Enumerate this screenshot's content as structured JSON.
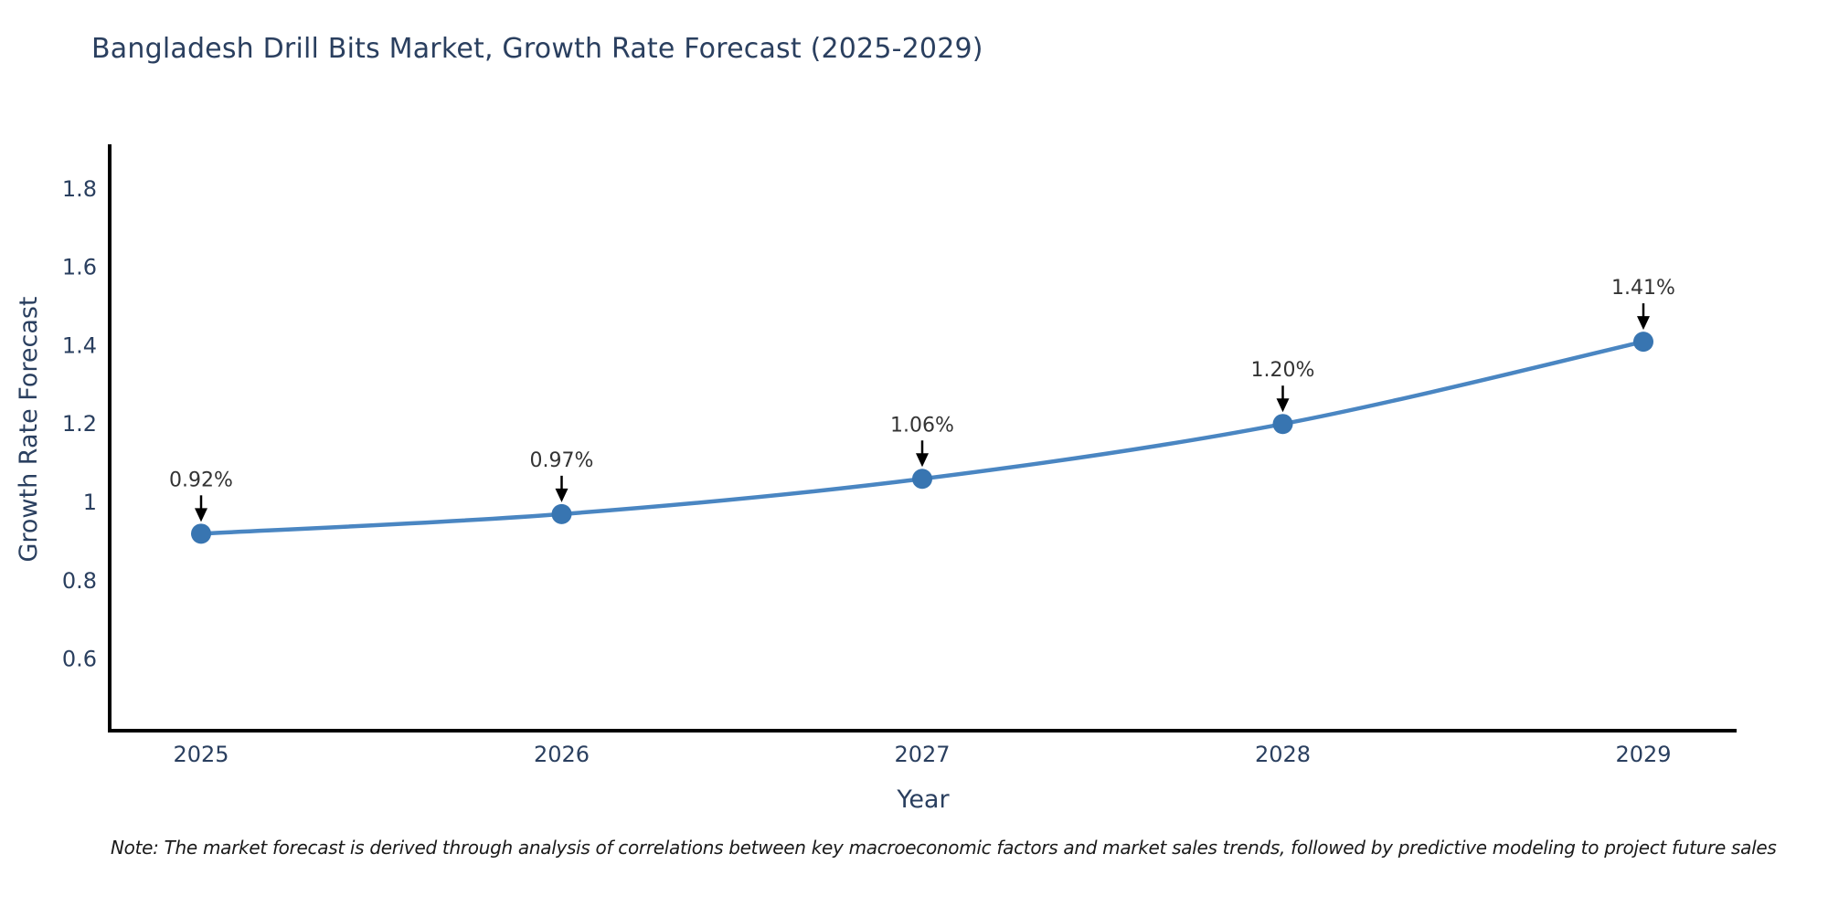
{
  "title": "Bangladesh Drill Bits Market, Growth Rate Forecast (2025-2029)",
  "note": "Note: The market forecast is derived through analysis of correlations between key macroeconomic factors and market sales trends, followed by predictive modeling to project future sales",
  "chart_data": {
    "type": "line",
    "title": "Bangladesh Drill Bits Market, Growth Rate Forecast (2025-2029)",
    "xlabel": "Year",
    "ylabel": "Growth Rate Forecast",
    "categories": [
      "2025",
      "2026",
      "2027",
      "2028",
      "2029"
    ],
    "values": [
      0.92,
      0.97,
      1.06,
      1.2,
      1.41
    ],
    "point_labels": [
      "0.92%",
      "0.97%",
      "1.06%",
      "1.20%",
      "1.41%"
    ],
    "series": [
      {
        "name": "Growth Rate Forecast",
        "values": [
          0.92,
          0.97,
          1.06,
          1.2,
          1.41
        ]
      }
    ],
    "ytick_labels": [
      "1.8",
      "1.6",
      "1.4",
      "1.2",
      "1",
      "0.8",
      "0.6"
    ],
    "ytick_values": [
      1.8,
      1.6,
      1.4,
      1.2,
      1,
      0.8,
      0.6
    ],
    "ylim": [
      0.42,
      1.92
    ],
    "grid": false,
    "legend_position": "none",
    "marker_style": "circle",
    "annotation_arrows": true,
    "colors": {
      "line": "#4a86c2",
      "marker": "#3875b1",
      "axis": "#000000",
      "tick_text": "#2a3f5f",
      "title_text": "#2a3f5f",
      "annotation_text": "#333333",
      "arrow": "#000000",
      "note_text": "#1a1a1a"
    }
  }
}
